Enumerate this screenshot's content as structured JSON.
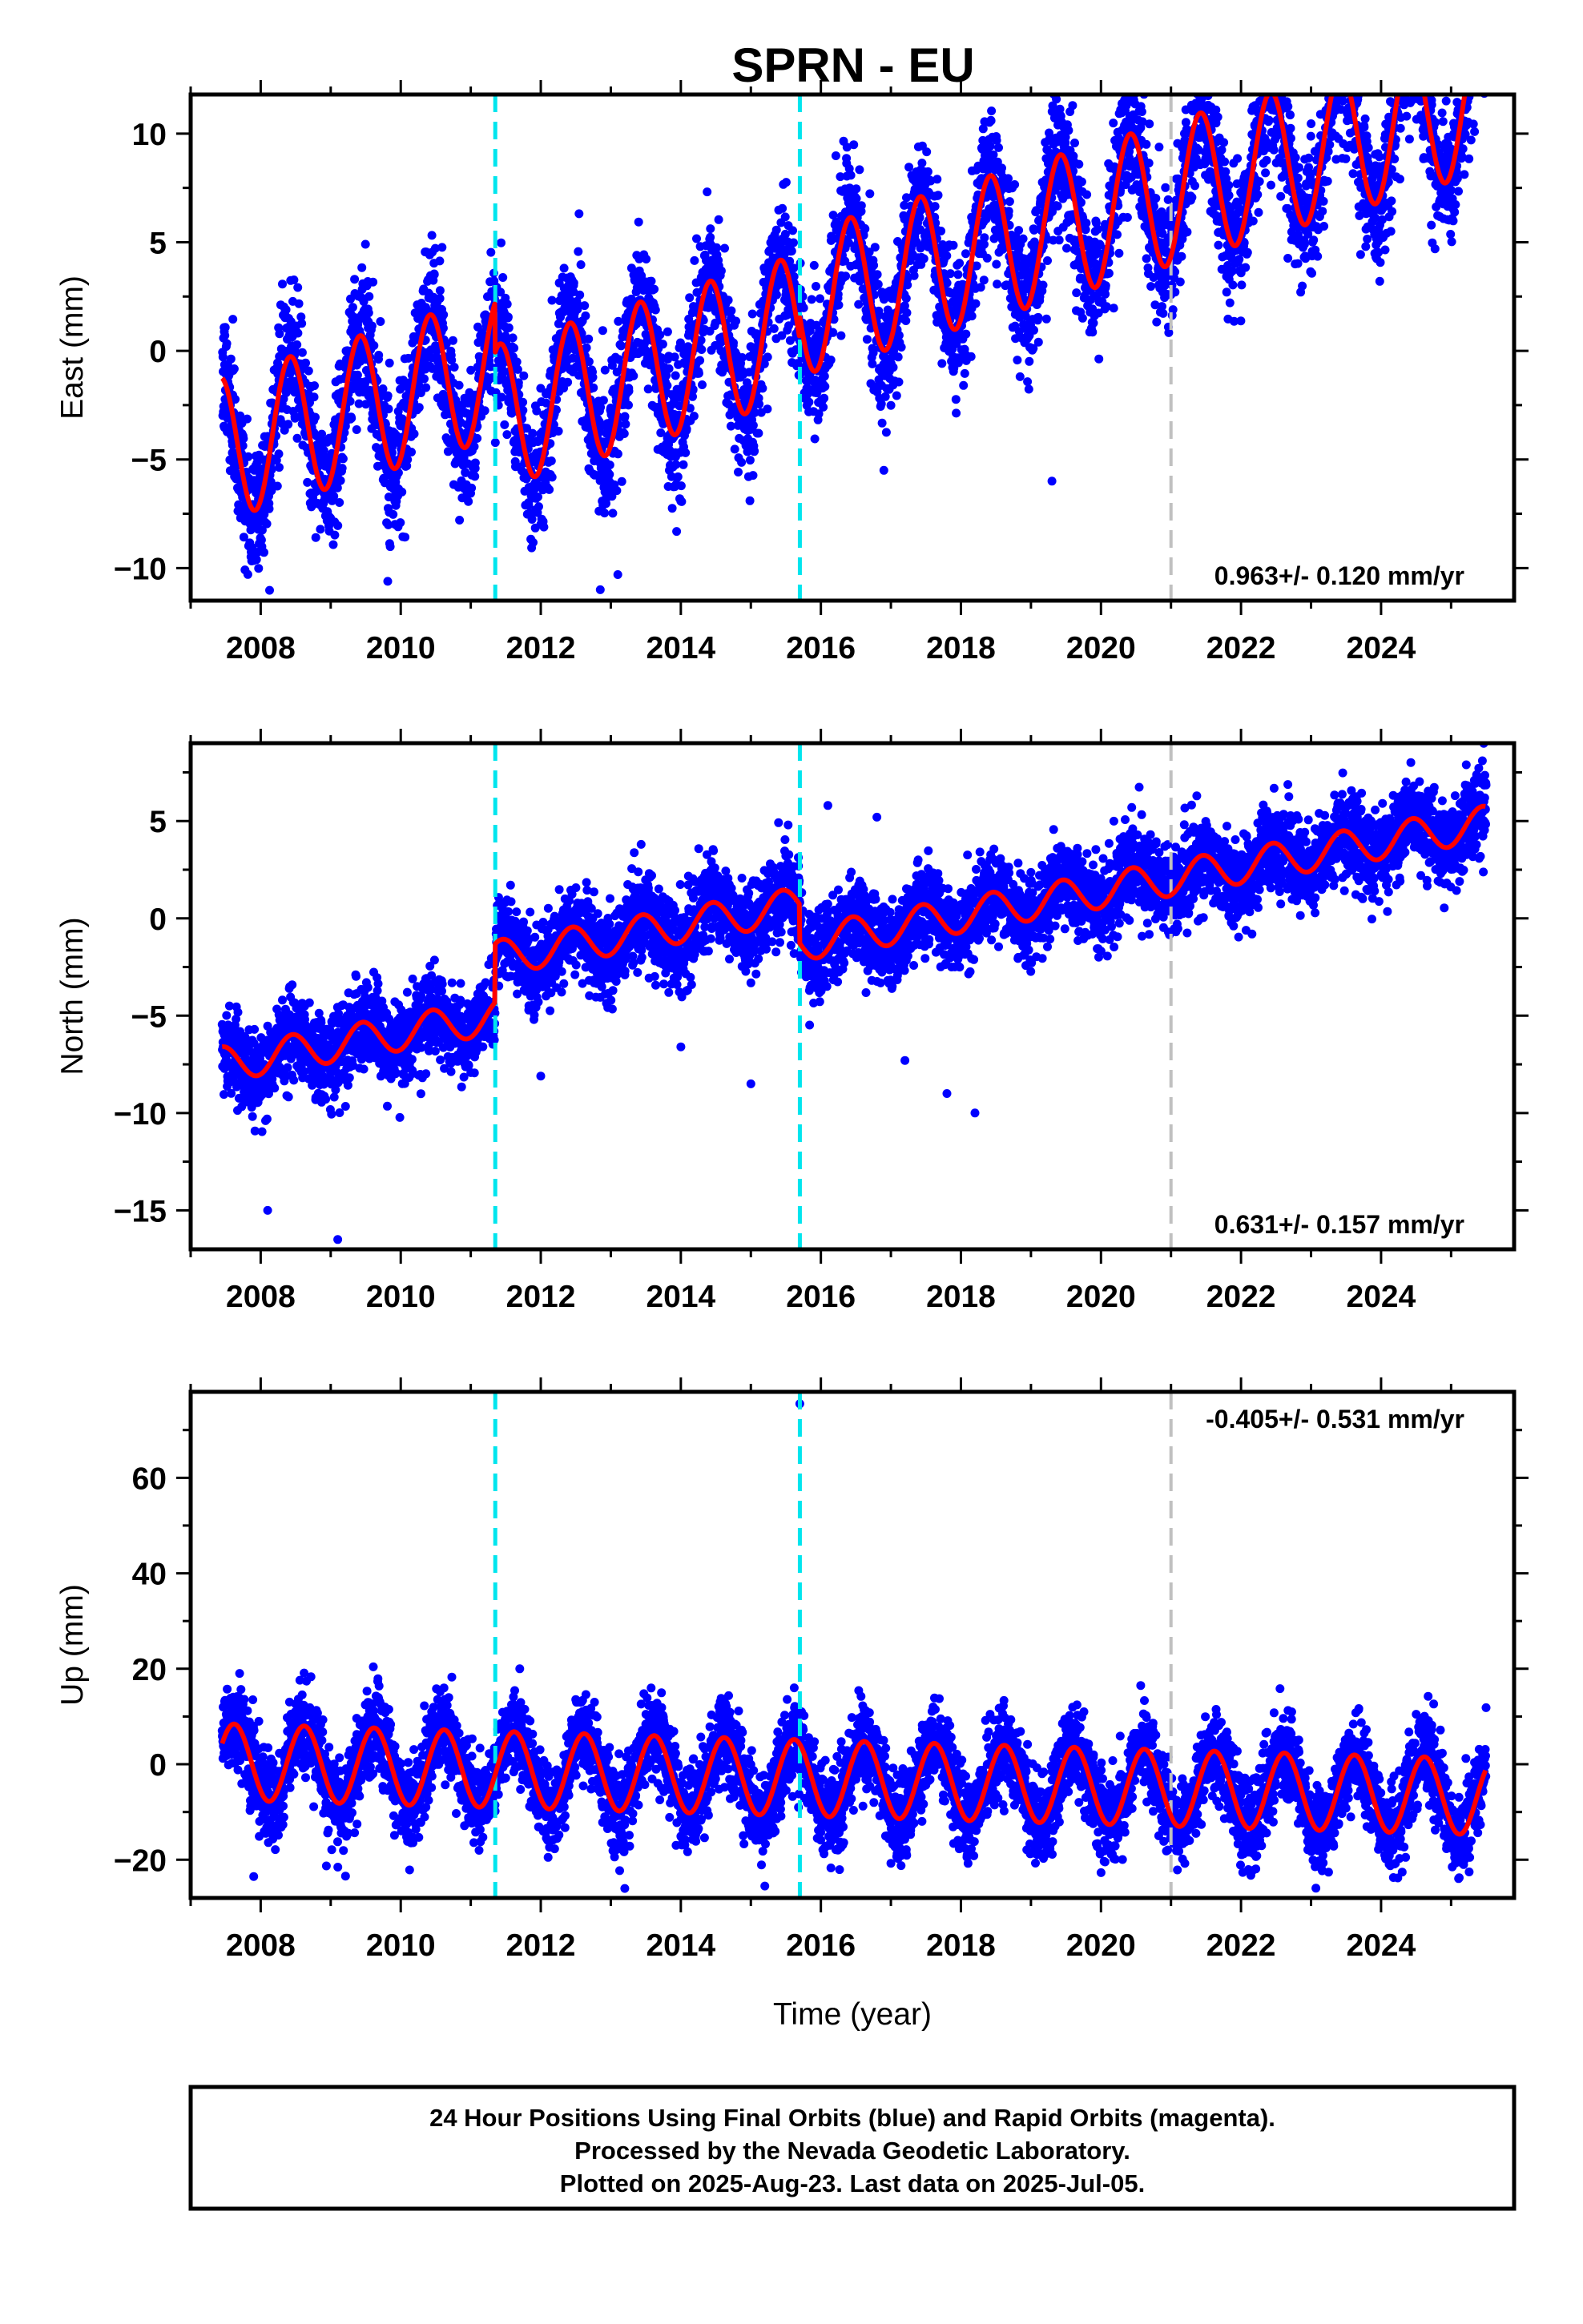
{
  "title": "SPRN - EU",
  "colors": {
    "final_orbits": "#0000ff",
    "model_fit": "#ff0000",
    "equipment_change": "#00e5ee",
    "other_event": "#c0c0c0"
  },
  "caption_lines": [
    "24 Hour Positions Using Final Orbits (blue) and Rapid Orbits (magenta).",
    "Processed by the Nevada Geodetic Laboratory.",
    "Plotted on 2025-Aug-23. Last data on 2025-Jul-05."
  ],
  "chart_data": [
    {
      "type": "scatter",
      "component": "east",
      "ylabel": "East (mm)",
      "xlabel": "",
      "xlim": [
        2007.0,
        2025.9
      ],
      "ylim": [
        -11.5,
        11.8
      ],
      "xticks": [
        2008,
        2010,
        2012,
        2014,
        2016,
        2018,
        2020,
        2022,
        2024
      ],
      "yticks": [
        -10,
        -5,
        0,
        5,
        10
      ],
      "rate": "0.963+/- 0.120 mm/yr",
      "rate_position": "bottom-right",
      "events": [
        {
          "x": 2011.35,
          "kind": "equipment_change"
        },
        {
          "x": 2015.7,
          "kind": "equipment_change"
        },
        {
          "x": 2021.0,
          "kind": "other_event"
        }
      ],
      "series": [
        {
          "role": "daily_positions",
          "x_start": 2007.45,
          "x_end": 2025.5,
          "offset": -4.5,
          "trend": 0.963,
          "steps": [
            [
              2011.35,
              -2.3
            ],
            [
              2015.7,
              1.0
            ]
          ],
          "annual_amplitude": 3.3,
          "annual_peak": 0.42,
          "noise": 1.5,
          "outliers": [
            [
              2013.1,
              -10.3
            ],
            [
              2016.9,
              -5.5
            ],
            [
              2019.3,
              -6.0
            ],
            [
              2012.85,
              -11.0
            ]
          ]
        }
      ]
    },
    {
      "type": "scatter",
      "component": "north",
      "ylabel": "North (mm)",
      "xlabel": "",
      "xlim": [
        2007.0,
        2025.9
      ],
      "ylim": [
        -17.0,
        9.0
      ],
      "xticks": [
        2008,
        2010,
        2012,
        2014,
        2016,
        2018,
        2020,
        2022,
        2024
      ],
      "yticks": [
        -15,
        -10,
        -5,
        0,
        5
      ],
      "rate": "0.631+/- 0.157 mm/yr",
      "rate_position": "bottom-right",
      "events": [
        {
          "x": 2011.35,
          "kind": "equipment_change"
        },
        {
          "x": 2015.7,
          "kind": "equipment_change"
        },
        {
          "x": 2021.0,
          "kind": "other_event"
        }
      ],
      "series": [
        {
          "role": "daily_positions",
          "x_start": 2007.45,
          "x_end": 2025.5,
          "offset": -7.5,
          "trend": 0.631,
          "steps": [
            [
              2011.35,
              3.0
            ],
            [
              2015.7,
              -2.0
            ]
          ],
          "annual_amplitude": 0.9,
          "annual_peak": 0.45,
          "noise": 1.1,
          "outliers": [
            [
              2008.1,
              -15.0
            ],
            [
              2009.1,
              -16.5
            ],
            [
              2012.0,
              -8.1
            ],
            [
              2014.0,
              -6.6
            ],
            [
              2015.0,
              -8.5
            ],
            [
              2017.2,
              -7.3
            ],
            [
              2017.8,
              -9.0
            ],
            [
              2018.2,
              -10.0
            ],
            [
              2016.1,
              5.8
            ],
            [
              2016.8,
              5.2
            ]
          ]
        }
      ]
    },
    {
      "type": "scatter",
      "component": "up",
      "ylabel": "Up (mm)",
      "xlabel": "Time (year)",
      "xlim": [
        2007.0,
        2025.9
      ],
      "ylim": [
        -28.0,
        78.0
      ],
      "xticks": [
        2008,
        2010,
        2012,
        2014,
        2016,
        2018,
        2020,
        2022,
        2024
      ],
      "yticks": [
        -20,
        0,
        20,
        40,
        60
      ],
      "rate": "-0.405+/- 0.531 mm/yr",
      "rate_position": "top-right",
      "events": [
        {
          "x": 2011.35,
          "kind": "equipment_change"
        },
        {
          "x": 2015.7,
          "kind": "equipment_change"
        },
        {
          "x": 2021.0,
          "kind": "other_event"
        }
      ],
      "series": [
        {
          "role": "daily_positions",
          "x_start": 2007.45,
          "x_end": 2025.5,
          "offset": 0.5,
          "trend": -0.405,
          "steps": [],
          "annual_amplitude": 8.0,
          "annual_peak": 0.62,
          "noise": 4.5,
          "outliers": [
            [
              2015.7,
              75.5
            ],
            [
              2013.2,
              -26.0
            ],
            [
              2015.2,
              -25.5
            ],
            [
              2007.9,
              -23.5
            ],
            [
              2011.7,
              20.0
            ]
          ]
        }
      ]
    }
  ]
}
